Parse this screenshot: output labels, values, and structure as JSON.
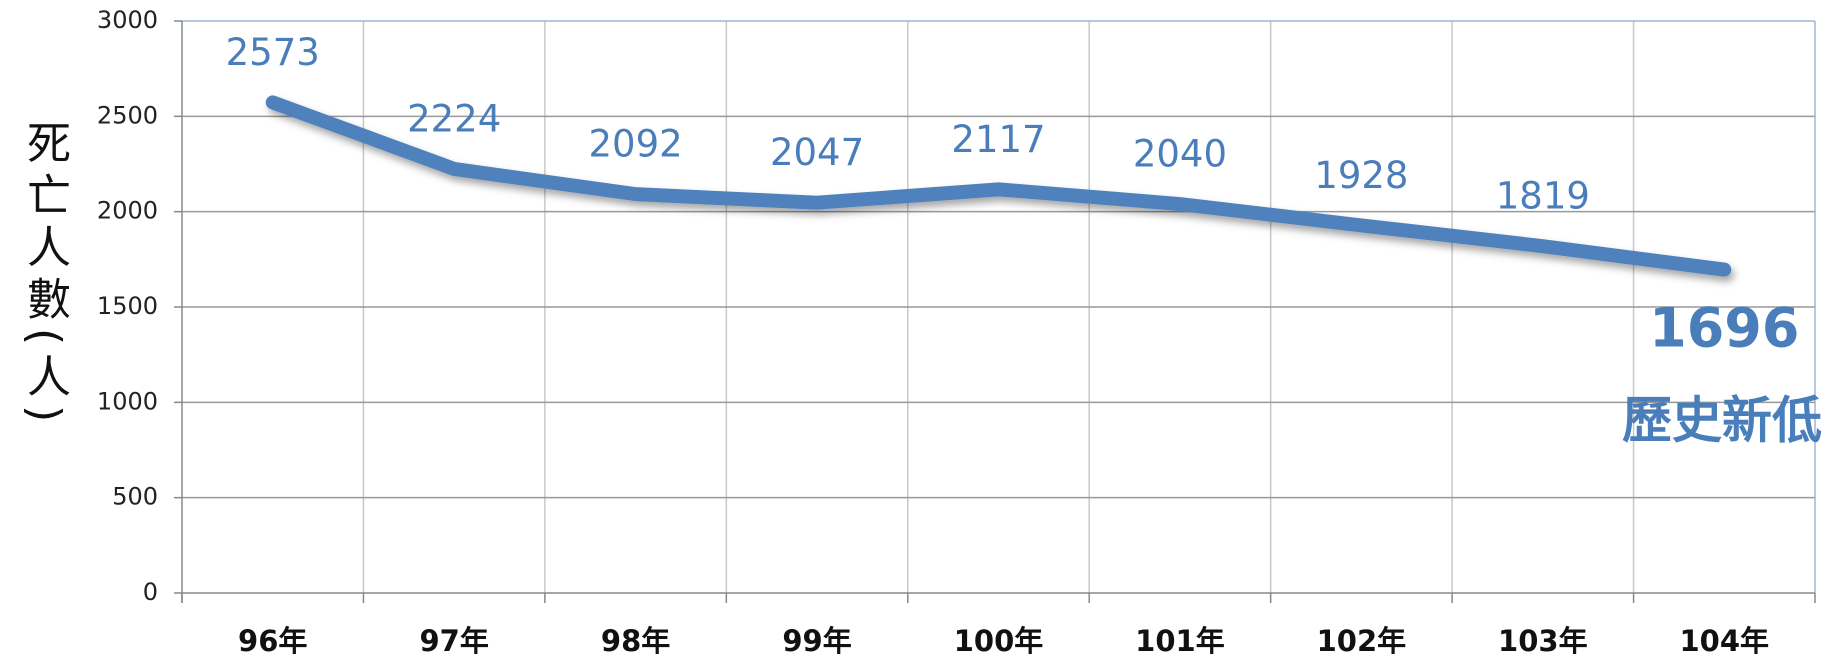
{
  "chart_data": {
    "type": "line",
    "y_label": "死亡人數(人)",
    "annotation": "歷史新低",
    "categories": [
      "96年",
      "97年",
      "98年",
      "99年",
      "100年",
      "101年",
      "102年",
      "103年",
      "104年"
    ],
    "series": [
      {
        "name": "死亡人數",
        "color": "#4f81bd",
        "values": [
          2573,
          2224,
          2092,
          2047,
          2117,
          2040,
          1928,
          1819,
          1696
        ]
      }
    ],
    "ylim": [
      0,
      3000
    ],
    "yticks": [
      0,
      500,
      1000,
      1500,
      2000,
      2500,
      3000
    ],
    "grid": true
  }
}
